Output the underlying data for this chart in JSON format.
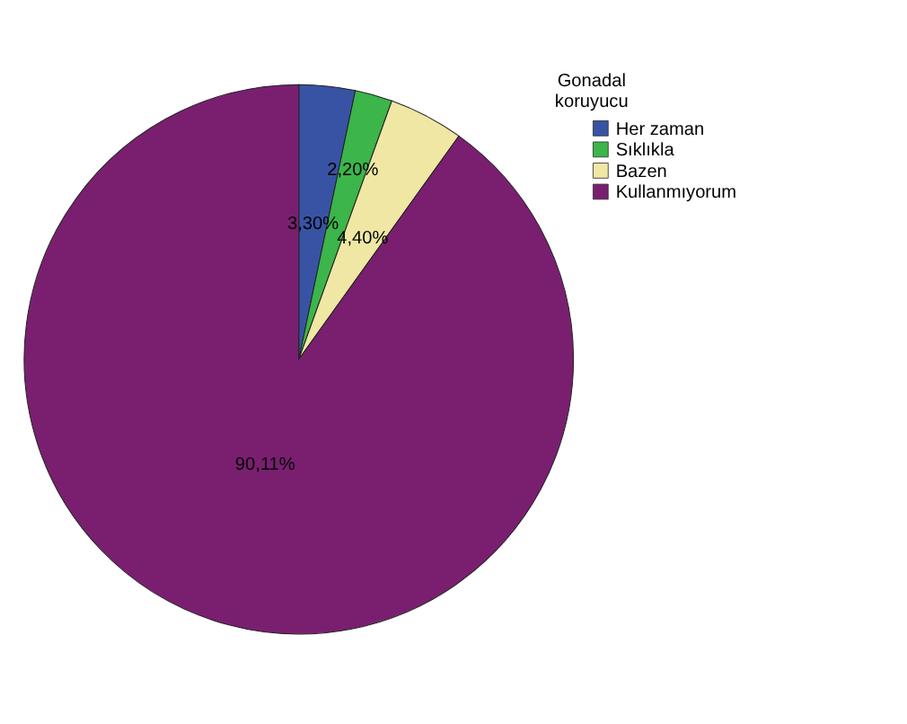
{
  "chart_data": {
    "type": "pie",
    "legend_title": "Gonadal koruyucu",
    "categories": [
      "Her zaman",
      "Sıklıkla",
      "Bazen",
      "Kullanmıyorum"
    ],
    "values": [
      3.3,
      2.2,
      4.4,
      90.11
    ],
    "value_labels": [
      "3,30%",
      "2,20%",
      "4,40%",
      "90,11%"
    ],
    "colors": [
      "#3953a4",
      "#3cb54a",
      "#efe7a3",
      "#7a1f70"
    ],
    "legend": "top right"
  }
}
